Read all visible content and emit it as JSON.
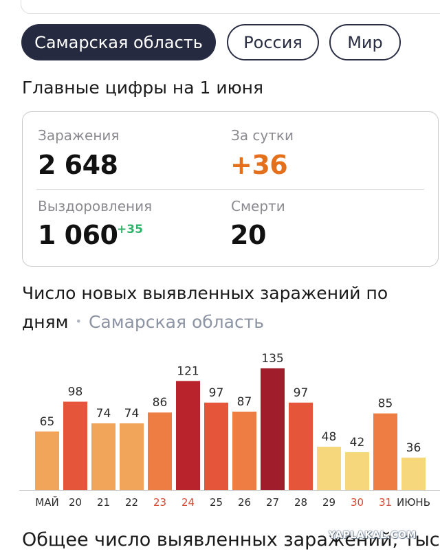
{
  "tabs": [
    {
      "label": "Самарская область",
      "active": true
    },
    {
      "label": "Россия",
      "active": false
    },
    {
      "label": "Мир",
      "active": false
    }
  ],
  "main_title": "Главные цифры на 1 июня",
  "stats": {
    "infections_label": "Заражения",
    "infections_value": "2 648",
    "per_day_label": "За сутки",
    "per_day_value": "+36",
    "recovered_label": "Выздоровления",
    "recovered_value": "1 060",
    "recovered_delta": "+35",
    "deaths_label": "Смерти",
    "deaths_value": "20"
  },
  "chart_heading": {
    "title_line1": "Число новых выявленных заражений по",
    "title_line2": "дням",
    "dot": "•",
    "region": "Самарская область"
  },
  "chart_data": {
    "type": "bar",
    "title": "Число новых выявленных заражений по дням",
    "subtitle": "Самарская область",
    "categories": [
      "МАЙ",
      "20",
      "21",
      "22",
      "23",
      "24",
      "25",
      "26",
      "27",
      "28",
      "29",
      "30",
      "31",
      "ИЮНЬ"
    ],
    "values": [
      65,
      98,
      74,
      74,
      86,
      121,
      97,
      87,
      135,
      97,
      48,
      42,
      85,
      36
    ],
    "weekend_labels": [
      "23",
      "24",
      "30",
      "31"
    ],
    "ylim": [
      0,
      140
    ],
    "grid": false,
    "colors": {
      "low": "#f6d77c",
      "mid_low": "#f1a55a",
      "mid": "#ee7d44",
      "high": "#e4553a",
      "very_high": "#b8232c",
      "peak": "#a01d2b",
      "weekend_label": "#d64a32",
      "label": "#2a2a2a"
    }
  },
  "bottom_title": "Общее число выявленных заражений, тыс.",
  "watermark": "YAPLAKAL.COM"
}
